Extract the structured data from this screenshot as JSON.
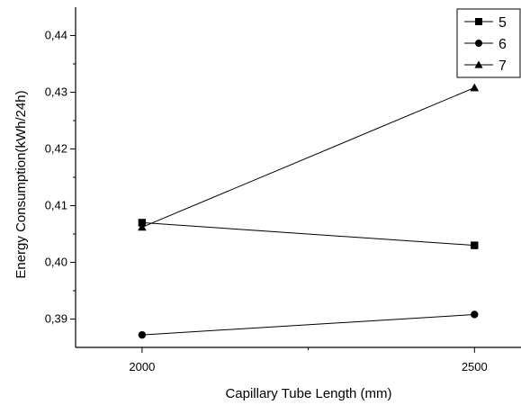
{
  "chart_data": {
    "type": "line",
    "xlabel": "Capillary Tube Length (mm)",
    "ylabel": "Energy Consumption(kWh/24h)",
    "x": [
      2000,
      2500
    ],
    "x_ticks": [
      "2000",
      "2500"
    ],
    "xlim": [
      1900,
      2570
    ],
    "ylim": [
      0.385,
      0.445
    ],
    "y_ticks": [
      "0,39",
      "0,40",
      "0,41",
      "0,42",
      "0,43",
      "0,44"
    ],
    "y_tick_values": [
      0.39,
      0.4,
      0.41,
      0.42,
      0.43,
      0.44
    ],
    "grid": false,
    "legend_position": "top-right",
    "series": [
      {
        "name": "5",
        "marker": "square",
        "values": [
          0.407,
          0.403
        ]
      },
      {
        "name": "6",
        "marker": "circle",
        "values": [
          0.3872,
          0.3908
        ]
      },
      {
        "name": "7",
        "marker": "triangle",
        "values": [
          0.4062,
          0.4308
        ]
      }
    ]
  }
}
